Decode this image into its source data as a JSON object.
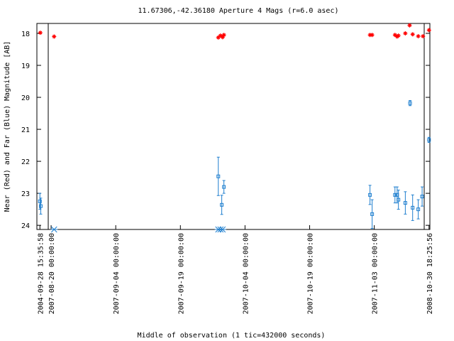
{
  "chart_data": {
    "type": "scatter",
    "title": "11.67306,-42.36180   Aperture 4 Mags (r=6.0 asec)",
    "x_label": "Middle of observation (1 tic=432000 seconds)",
    "y_label": "Near (Red) and Far (Blue) Magnitude [AB]",
    "xlim": [
      -3.3,
      87.9
    ],
    "xticks": [
      {
        "value": -2.6,
        "label": "2004-09-28 15:35:58"
      },
      {
        "value": 0,
        "label": "2007-08-20 00:00:00"
      },
      {
        "value": 15,
        "label": "2007-09-04 00:00:00"
      },
      {
        "value": 30,
        "label": "2007-09-19 00:00:00"
      },
      {
        "value": 45,
        "label": "2007-10-04 00:00:00"
      },
      {
        "value": 60,
        "label": "2007-10-19 00:00:00"
      },
      {
        "value": 75,
        "label": "2007-11-03 00:00:00"
      },
      {
        "value": 87.7,
        "label": "2008-10-30 18:25:56"
      }
    ],
    "ylim": [
      17.69,
      24.13
    ],
    "y_inverted": true,
    "yticks": [
      18,
      19,
      20,
      21,
      22,
      23,
      24
    ],
    "series": [
      {
        "color": "#ff0000",
        "marker": "star",
        "x": [
          -2.5,
          0.7,
          38.8,
          39.3,
          39.8,
          40.1,
          74.0,
          74.5,
          79.8,
          80.3,
          80.6,
          82.2,
          83.2,
          83.9,
          85.2,
          86.3,
          87.7
        ],
        "values": [
          17.98,
          18.1,
          18.13,
          18.07,
          18.12,
          18.05,
          18.05,
          18.05,
          18.05,
          18.1,
          18.07,
          18.0,
          17.75,
          18.03,
          18.09,
          18.09,
          17.9
        ]
      },
      {
        "color": "#1f7fcf",
        "marker": "square",
        "x": [
          -2.6,
          -2.4,
          38.8,
          39.6,
          40.1,
          74.0,
          74.5,
          79.8,
          80.3,
          80.6,
          82.2,
          83.3,
          83.9,
          85.2,
          86.1,
          87.7
        ],
        "values": [
          23.25,
          23.4,
          22.47,
          23.36,
          22.8,
          23.05,
          23.65,
          23.05,
          23.05,
          23.2,
          23.3,
          20.18,
          23.45,
          23.5,
          23.1,
          21.33
        ],
        "errors": [
          0.25,
          0.25,
          0.6,
          0.3,
          0.2,
          0.3,
          0.45,
          0.25,
          0.25,
          0.3,
          0.35,
          0.08,
          0.4,
          0.3,
          0.3,
          0.08
        ]
      },
      {
        "color": "#1f7fcf",
        "marker": "asterisk",
        "x": [
          0.7,
          38.8,
          39.3,
          39.8
        ],
        "values": [
          24.13,
          24.13,
          24.13,
          24.13
        ]
      }
    ]
  }
}
